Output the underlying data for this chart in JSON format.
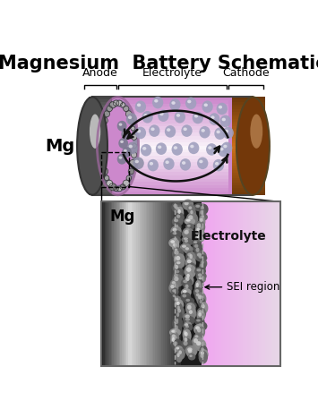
{
  "title": "Magnesium  Battery Schematic",
  "title_fontsize": 15,
  "label_anode": "Anode",
  "label_electrolyte": "Electrolyte",
  "label_cathode": "Cathode",
  "label_mg": "Mg",
  "label_mg2": "Mg",
  "label_electrolyte2": "Electrolyte",
  "label_sei": "SEI region",
  "bg_color": "#ffffff",
  "anode_gray_light": "#d0d0d0",
  "anode_gray_mid": "#909090",
  "anode_gray_dark": "#404040",
  "cathode_brown_light": "#cc8844",
  "cathode_brown_mid": "#aa5522",
  "cathode_brown_dark": "#7a3a10",
  "electrolyte_purple": "#cc88cc",
  "electrolyte_light": "#e8c0e8",
  "electrolyte_white": "#f8eef8",
  "ion_color": "#9988aa",
  "ion_dark": "#667788",
  "arrow_color": "#111111",
  "zoom_gray_dark": "#222222",
  "zoom_gray_mid": "#888888",
  "zoom_gray_light": "#cccccc",
  "zoom_elec_left": "#d8a8d8",
  "zoom_elec_right": "#f0d0f0",
  "sei_bubble_dark": "#555555",
  "sei_bubble_light": "#aaaaaa"
}
